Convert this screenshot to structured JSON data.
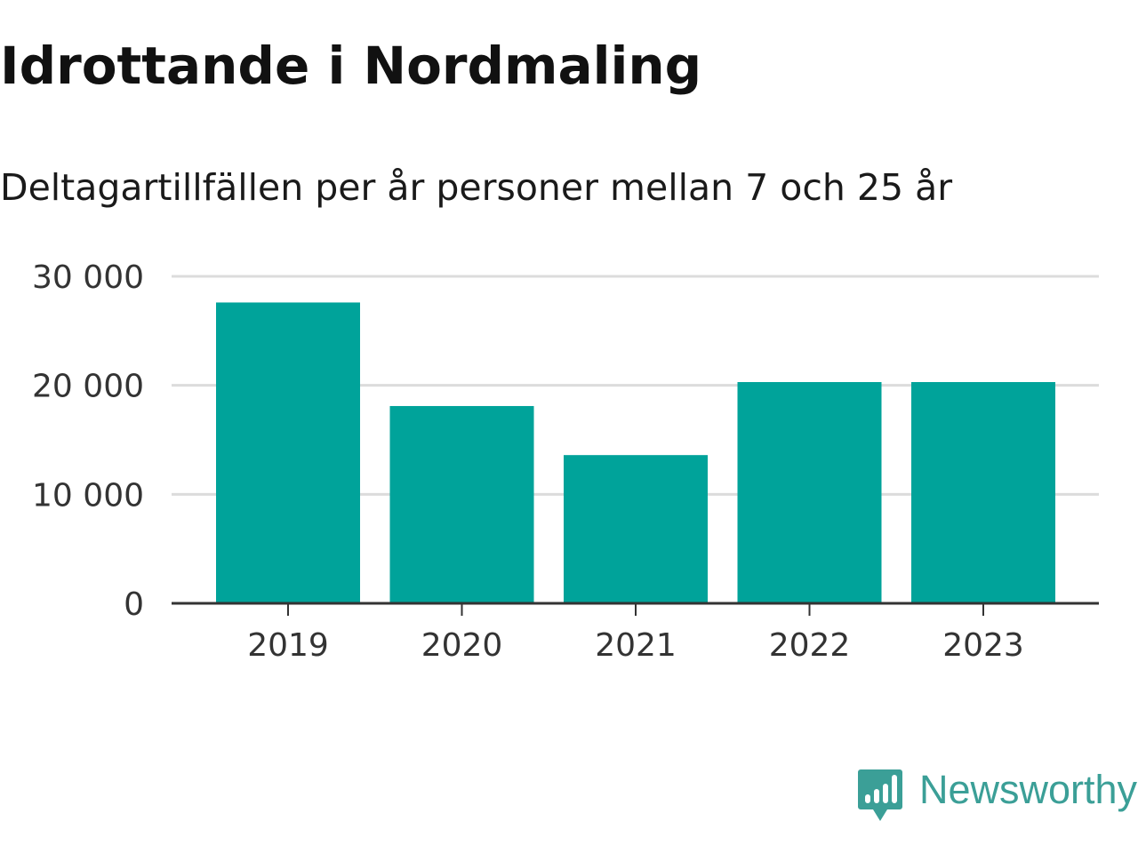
{
  "title": "Idrottande i Nordmaling",
  "subtitle": "Deltagartillfällen per år personer mellan 7 och 25 år",
  "brand": {
    "name": "Newsworthy",
    "color": "#3b9f97",
    "icon": "newsworthy-logo-icon"
  },
  "colors": {
    "bar": "#00a39a",
    "grid": "#dcdcdc",
    "axis": "#333333"
  },
  "chart_data": {
    "type": "bar",
    "title": "Idrottande i Nordmaling",
    "subtitle": "Deltagartillfällen per år personer mellan 7 och 25 år",
    "categories": [
      "2019",
      "2020",
      "2021",
      "2022",
      "2023"
    ],
    "values": [
      27600,
      18100,
      13600,
      20300,
      20300
    ],
    "xlabel": "",
    "ylabel": "",
    "ylim": [
      0,
      30000
    ],
    "yticks": [
      0,
      10000,
      20000,
      30000
    ],
    "ytick_labels": [
      "0",
      "10 000",
      "20 000",
      "30 000"
    ],
    "grid": true,
    "legend": "none"
  }
}
